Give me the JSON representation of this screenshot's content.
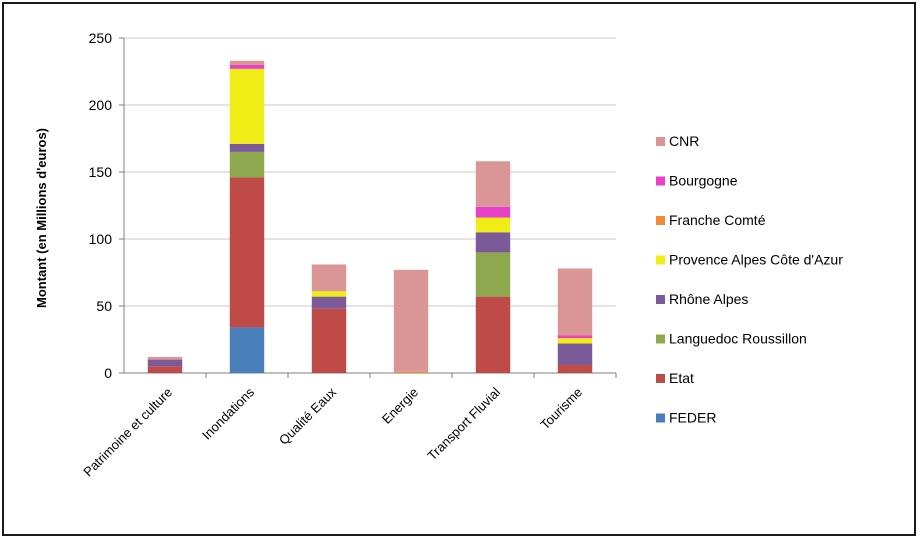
{
  "chart_data": {
    "type": "bar",
    "stacked": true,
    "title": "",
    "xlabel": "",
    "ylabel": "Montant (en Millions d'euros)",
    "ylim": [
      0,
      250
    ],
    "yticks": [
      0,
      50,
      100,
      150,
      200,
      250
    ],
    "grid": true,
    "legend_position": "right",
    "categories": [
      "Patrimoine et culture",
      "Inondations",
      "Qualité Eaux",
      "Energie",
      "Transport Fluvial",
      "Tourisme"
    ],
    "series": [
      {
        "name": "FEDER",
        "color": "#4a7ebb",
        "values": [
          0,
          34,
          0,
          0,
          0,
          0
        ]
      },
      {
        "name": "Etat",
        "color": "#be4b48",
        "values": [
          5,
          112,
          48,
          0,
          57,
          6
        ]
      },
      {
        "name": "Languedoc Roussillon",
        "color": "#8ea84e",
        "values": [
          0,
          19,
          0,
          0,
          33,
          0
        ]
      },
      {
        "name": "Rhône Alpes",
        "color": "#7a5a98",
        "values": [
          5,
          6,
          9,
          0,
          15,
          16
        ]
      },
      {
        "name": "Provence Alpes Côte d'Azur",
        "color": "#f0ec16",
        "values": [
          0,
          56,
          4,
          0,
          11,
          4
        ]
      },
      {
        "name": "Franche Comté",
        "color": "#f08a36",
        "values": [
          0,
          0,
          0,
          1,
          0,
          0
        ]
      },
      {
        "name": "Bourgogne",
        "color": "#e840c8",
        "values": [
          0,
          3,
          0,
          0,
          8,
          2
        ]
      },
      {
        "name": "CNR",
        "color": "#d99694",
        "values": [
          2,
          3,
          20,
          76,
          34,
          50
        ]
      }
    ],
    "legend_order": [
      "CNR",
      "Bourgogne",
      "Franche Comté",
      "Provence Alpes Côte d'Azur",
      "Rhône Alpes",
      "Languedoc Roussillon",
      "Etat",
      "FEDER"
    ]
  }
}
